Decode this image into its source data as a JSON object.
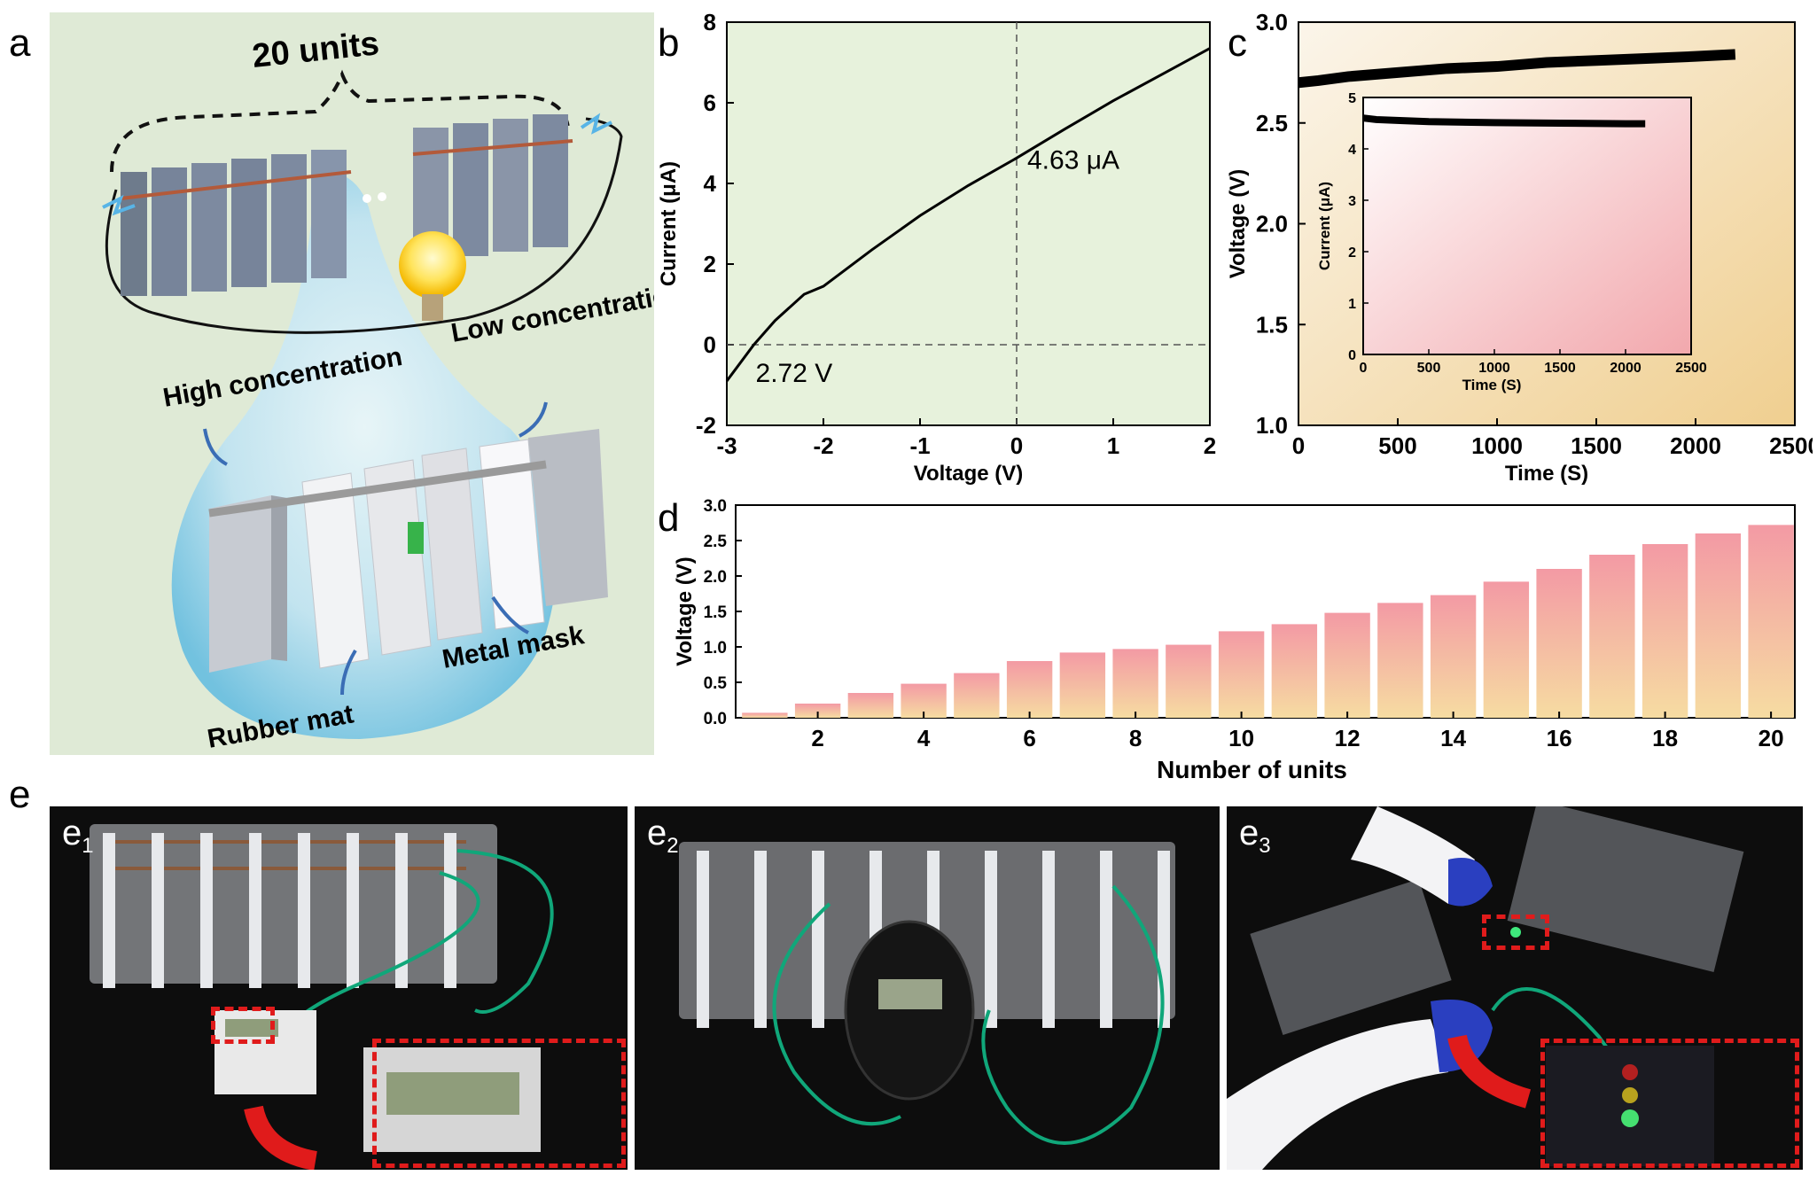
{
  "panels": {
    "a": {
      "letter": "a",
      "title": "20 units",
      "labels": {
        "high": "High concentration",
        "low": "Low concentration",
        "metal_mask": "Metal mask",
        "rubber_mat": "Rubber mat"
      }
    },
    "b": {
      "letter": "b"
    },
    "c": {
      "letter": "c"
    },
    "d": {
      "letter": "d"
    },
    "e": {
      "letter": "e",
      "sub_main": "e",
      "subs": [
        {
          "index": "1"
        },
        {
          "index": "2"
        },
        {
          "index": "3"
        }
      ]
    }
  },
  "colors": {
    "panel_a_bg": "#dfead6",
    "panel_b_bg": "#e7f2dc",
    "panel_c_bg_top": "#fbf5ea",
    "panel_c_bg_bottom": "#f0cf90",
    "inset_bg_top": "#ffffff",
    "inset_bg_bottom": "#f2a8ad",
    "bar_top": "#f39aa4",
    "bar_bottom": "#f6dca2",
    "line": "#000000",
    "dash_red": "#e01b1b",
    "cable_green": "#10a77a"
  },
  "chart_data": [
    {
      "id": "b",
      "type": "line",
      "xlabel": "Voltage (V)",
      "ylabel": "Current (μA)",
      "xlim": [
        -3,
        2
      ],
      "ylim": [
        -2,
        8
      ],
      "xticks": [
        -3,
        -2,
        -1,
        0,
        1,
        2
      ],
      "yticks": [
        -2,
        0,
        2,
        4,
        6,
        8
      ],
      "grid": false,
      "series": [
        {
          "x": [
            -3.0,
            -2.72,
            -2.5,
            -2.2,
            -2.0,
            -1.5,
            -1.0,
            -0.5,
            0.0,
            0.5,
            1.0,
            1.5,
            2.0
          ],
          "y": [
            -0.9,
            0.0,
            0.6,
            1.25,
            1.45,
            2.35,
            3.2,
            3.95,
            4.63,
            5.35,
            6.05,
            6.7,
            7.35
          ]
        }
      ],
      "annotations": [
        {
          "text": "4.63 μA",
          "x": 0.0,
          "y": 4.63
        },
        {
          "text": "2.72 V",
          "x": -2.72,
          "y": 0.0
        }
      ]
    },
    {
      "id": "c",
      "type": "line",
      "xlabel": "Time (S)",
      "ylabel": "Voltage (V)",
      "xlim": [
        0,
        2500
      ],
      "ylim": [
        1.0,
        3.0
      ],
      "xticks": [
        0,
        500,
        1000,
        1500,
        2000,
        2500
      ],
      "yticks": [
        1.0,
        1.5,
        2.0,
        2.5,
        3.0
      ],
      "grid": false,
      "series": [
        {
          "x": [
            0,
            100,
            250,
            500,
            750,
            1000,
            1250,
            1500,
            1750,
            2000,
            2200
          ],
          "y": [
            2.7,
            2.71,
            2.73,
            2.75,
            2.77,
            2.78,
            2.8,
            2.81,
            2.82,
            2.83,
            2.84
          ]
        }
      ],
      "inset": {
        "type": "line",
        "xlabel": "Time (S)",
        "ylabel": "Current (μA)",
        "xlim": [
          0,
          2500
        ],
        "ylim": [
          0,
          5
        ],
        "xticks": [
          0,
          500,
          1000,
          1500,
          2000,
          2500
        ],
        "yticks": [
          0,
          1,
          2,
          3,
          4,
          5
        ],
        "series": [
          {
            "x": [
              0,
              100,
              300,
              500,
              1000,
              1500,
              2000,
              2150
            ],
            "y": [
              4.6,
              4.57,
              4.55,
              4.53,
              4.51,
              4.5,
              4.49,
              4.49
            ]
          }
        ]
      }
    },
    {
      "id": "d",
      "type": "bar",
      "xlabel": "Number of units",
      "ylabel": "Voltage (V)",
      "ylim": [
        0,
        3.0
      ],
      "yticks": [
        0.0,
        0.5,
        1.0,
        1.5,
        2.0,
        2.5,
        3.0
      ],
      "categories": [
        1,
        2,
        3,
        4,
        5,
        6,
        7,
        8,
        9,
        10,
        11,
        12,
        13,
        14,
        15,
        16,
        17,
        18,
        19,
        20
      ],
      "xtick_labels": [
        "2",
        "4",
        "6",
        "8",
        "10",
        "12",
        "14",
        "16",
        "18",
        "20"
      ],
      "values": [
        0.07,
        0.2,
        0.35,
        0.48,
        0.63,
        0.8,
        0.92,
        0.97,
        1.03,
        1.22,
        1.32,
        1.48,
        1.62,
        1.73,
        1.92,
        2.1,
        2.3,
        2.45,
        2.6,
        2.72
      ]
    }
  ]
}
